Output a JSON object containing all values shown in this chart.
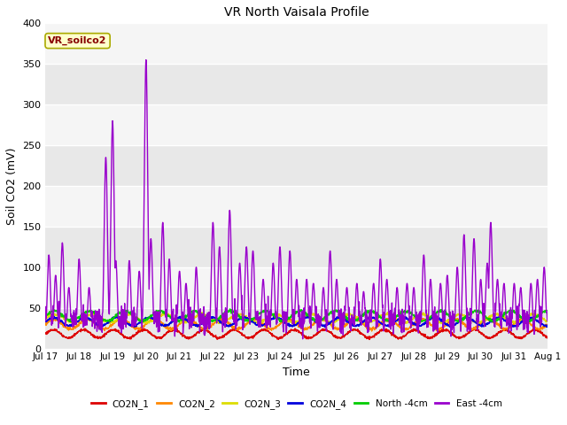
{
  "title": "VR North Vaisala Profile",
  "xlabel": "Time",
  "ylabel": "Soil CO2 (mV)",
  "ylim": [
    0,
    400
  ],
  "bg_color": "#ffffff",
  "annotation_label": "VR_soilco2",
  "annotation_color": "#880000",
  "annotation_bg": "#ffffcc",
  "annotation_border": "#aaaa00",
  "xtick_labels": [
    "Jul 17",
    "Jul 18",
    "Jul 19",
    "Jul 20",
    "Jul 21",
    "Jul 22",
    "Jul 23",
    "Jul 24",
    "Jul 25",
    "Jul 26",
    "Jul 27",
    "Jul 28",
    "Jul 29",
    "Jul 30",
    "Jul 31",
    "Aug 1"
  ],
  "band_colors": [
    "#e8e8e8",
    "#f5f5f5"
  ],
  "legend_entries": [
    {
      "label": "CO2N_1",
      "color": "#dd0000"
    },
    {
      "label": "CO2N_2",
      "color": "#ff8800"
    },
    {
      "label": "CO2N_3",
      "color": "#dddd00"
    },
    {
      "label": "CO2N_4",
      "color": "#0000dd"
    },
    {
      "label": "North -4cm",
      "color": "#00cc00"
    },
    {
      "label": "East -4cm",
      "color": "#9900cc"
    }
  ]
}
